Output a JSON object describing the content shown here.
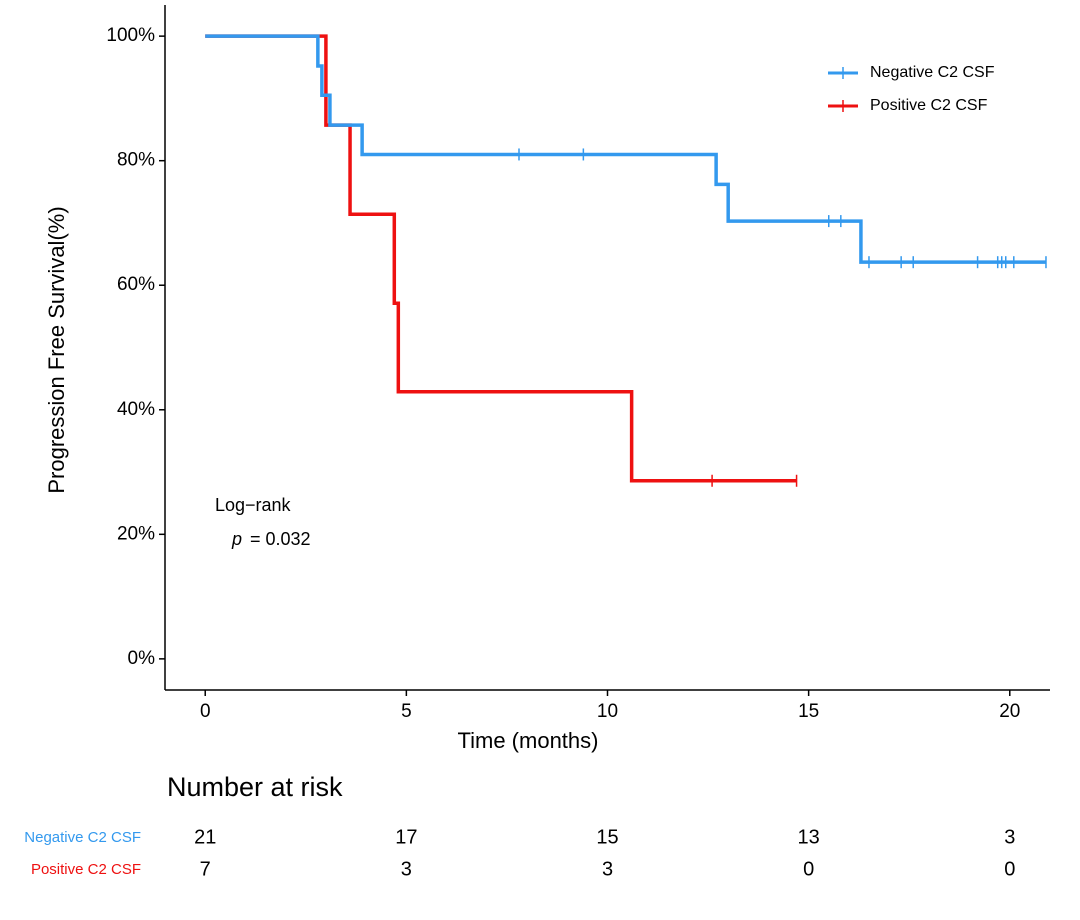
{
  "chart_data": {
    "type": "step",
    "x_label": "Time (months)",
    "y_label": "Progression Free Survival(%)",
    "xlim": [
      -1,
      21
    ],
    "ylim": [
      -5,
      105
    ],
    "xticks": [
      0,
      5,
      10,
      15,
      20
    ],
    "yticks": [
      {
        "value": 0,
        "label": "0%"
      },
      {
        "value": 20,
        "label": "20%"
      },
      {
        "value": 40,
        "label": "40%"
      },
      {
        "value": 60,
        "label": "60%"
      },
      {
        "value": 80,
        "label": "80%"
      },
      {
        "value": 100,
        "label": "100%"
      }
    ],
    "legend": "top-right",
    "series": [
      {
        "name": "Negative C2 CSF",
        "color": "#3399ee",
        "x": [
          0,
          2.8,
          2.9,
          3.1,
          3.9,
          12.7,
          13.0,
          16.3,
          20.9
        ],
        "values": [
          100,
          95.2,
          90.5,
          85.7,
          81.0,
          76.2,
          70.3,
          63.7,
          63.7
        ],
        "censor_x": [
          7.8,
          9.4,
          15.5,
          15.8,
          16.5,
          17.3,
          17.6,
          19.2,
          19.7,
          19.8,
          19.9,
          20.1,
          20.9
        ],
        "censor_values": [
          81.0,
          81.0,
          70.3,
          70.3,
          63.7,
          63.7,
          63.7,
          63.7,
          63.7,
          63.7,
          63.7,
          63.7,
          63.7
        ]
      },
      {
        "name": "Positive C2 CSF",
        "color": "#ee1111",
        "x": [
          0,
          3.0,
          3.6,
          4.7,
          4.8,
          10.6,
          14.7
        ],
        "values": [
          100,
          85.7,
          71.4,
          57.1,
          42.9,
          28.6,
          28.6
        ],
        "censor_x": [
          12.6,
          14.7
        ],
        "censor_values": [
          28.6,
          28.6
        ]
      }
    ],
    "annotation": {
      "test": "Log−rank",
      "p_symbol": "p",
      "p_value": "= 0.032"
    },
    "risk_table": {
      "title": "Number at risk",
      "rows": [
        {
          "name": "Negative C2 CSF",
          "color": "#3399ee",
          "counts": [
            21,
            17,
            15,
            13,
            3
          ]
        },
        {
          "name": "Positive C2 CSF",
          "color": "#ee1111",
          "counts": [
            7,
            3,
            3,
            0,
            0
          ]
        }
      ]
    }
  }
}
